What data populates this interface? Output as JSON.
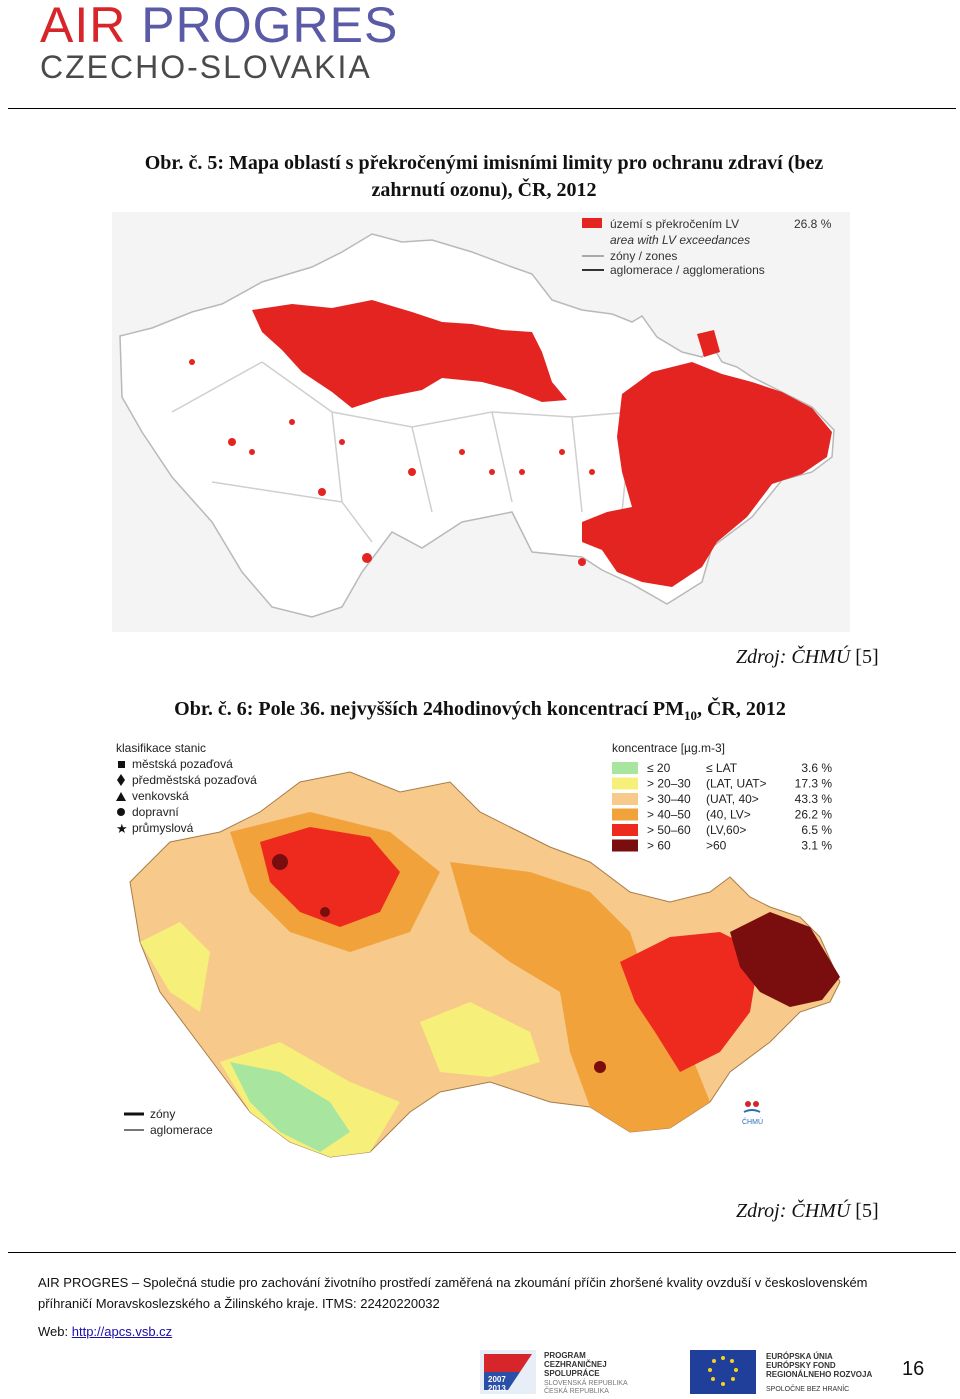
{
  "header": {
    "logo_line1_a": "AIR",
    "logo_line1_b": " PROGRES",
    "logo_line2": "CZECHO-SLOVAKIA"
  },
  "figure5": {
    "caption_line1": "Obr. č. 5: Mapa oblastí s překročenými imisními limity pro ochranu zdraví (bez",
    "caption_line2": "zahrnutí ozonu), ČR, 2012",
    "legend": {
      "exceed_cz": "území s překročením LV",
      "exceed_percent": "26.8 %",
      "exceed_en": "area with LV exceedances",
      "zones": "zóny / zones",
      "agglomerations": "aglomerace / agglomerations"
    },
    "source": "Zdroj: ČHMÚ",
    "source_ref": "[5]"
  },
  "figure6": {
    "caption_main": "Obr. č. 6: Pole 36. nejvyšších 24hodinových koncentrací PM",
    "caption_sub": "10",
    "caption_end": ", ČR, 2012",
    "station_legend": {
      "title": "klasifikace stanic",
      "items": [
        "městská pozaďová",
        "předměstská pozaďová",
        "venkovská",
        "dopravní",
        "průmyslová"
      ]
    },
    "conc_legend": {
      "title": "koncentrace [µg.m-3]",
      "items": [
        {
          "range": "≤ 20",
          "desc": "≤ LAT",
          "pct": "3.6 %",
          "color": "#a8e6a0"
        },
        {
          "range": "> 20–30",
          "desc": "(LAT, UAT>",
          "pct": "17.3 %",
          "color": "#f6f07a"
        },
        {
          "range": "> 30–40",
          "desc": "(UAT, 40>",
          "pct": "43.3 %",
          "color": "#f7c98a"
        },
        {
          "range": "> 40–50",
          "desc": "(40, LV>",
          "pct": "26.2 %",
          "color": "#f2a23a"
        },
        {
          "range": "> 50–60",
          "desc": "(LV,60>",
          "pct": "6.5 %",
          "color": "#ee2a1e"
        },
        {
          "range": "> 60",
          "desc": ">60",
          "pct": "3.1 %",
          "color": "#7a0d0d"
        }
      ]
    },
    "zones_label": "zóny",
    "agglomerations_label": "aglomerace",
    "chmu_label": "ČHMÚ",
    "source": "Zdroj: ČHMÚ",
    "source_ref": "[5]"
  },
  "footer": {
    "line1": "AIR PROGRES – Společná studie pro zachování životního prostředí zaměřená na zkoumání příčin zhoršené kvality ovzduší v československém",
    "line2": "příhraničí Moravskoslezského a Žilinského kraje. ITMS: 22420220032",
    "web_label": "Web:",
    "web_link": "http://apcs.vsb.cz",
    "logo1_line1": "PROGRAM",
    "logo1_line2": "CEZHRANIČNEJ",
    "logo1_line3": "SPOLUPRÁCE",
    "logo1_line4": "SLOVENSKÁ REPUBLIKA",
    "logo1_line5": "ČESKÁ REPUBLIKA",
    "logo1_years_a": "2007",
    "logo1_years_b": "2013",
    "logo2_line1": "EURÓPSKA ÚNIA",
    "logo2_line2": "EURÓPSKY FOND",
    "logo2_line3": "REGIONÁLNEHO ROZVOJA",
    "logo2_line4": "SPOLOČNE BEZ HRANÍC",
    "page_number": "16"
  }
}
